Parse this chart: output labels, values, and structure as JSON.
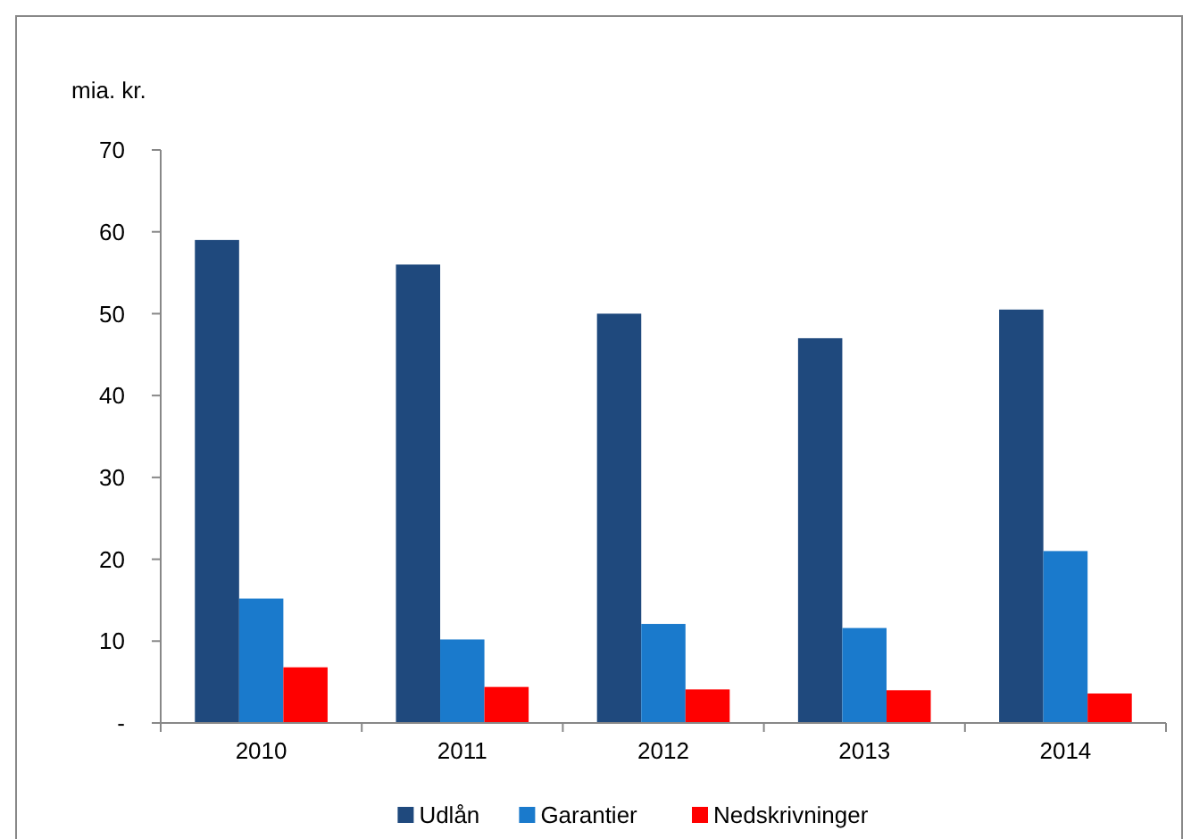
{
  "chart_data": {
    "type": "bar",
    "ylabel": "mia. kr.",
    "categories": [
      "2010",
      "2011",
      "2012",
      "2013",
      "2014"
    ],
    "series": [
      {
        "name": "Udlån",
        "color": "#1f497d",
        "values": [
          59,
          56,
          50,
          47,
          50.5
        ]
      },
      {
        "name": "Garantier",
        "color": "#1a7acc",
        "values": [
          15.2,
          10.2,
          12.1,
          11.6,
          21
        ]
      },
      {
        "name": "Nedskrivninger",
        "color": "#ff0000",
        "values": [
          6.8,
          4.4,
          4.1,
          4.0,
          3.6
        ]
      }
    ],
    "ylim": [
      0,
      70
    ],
    "yticks": [
      {
        "value": 0,
        "label": "-"
      },
      10,
      20,
      30,
      40,
      50,
      60,
      70
    ],
    "grid": false,
    "legend": "bottom"
  }
}
